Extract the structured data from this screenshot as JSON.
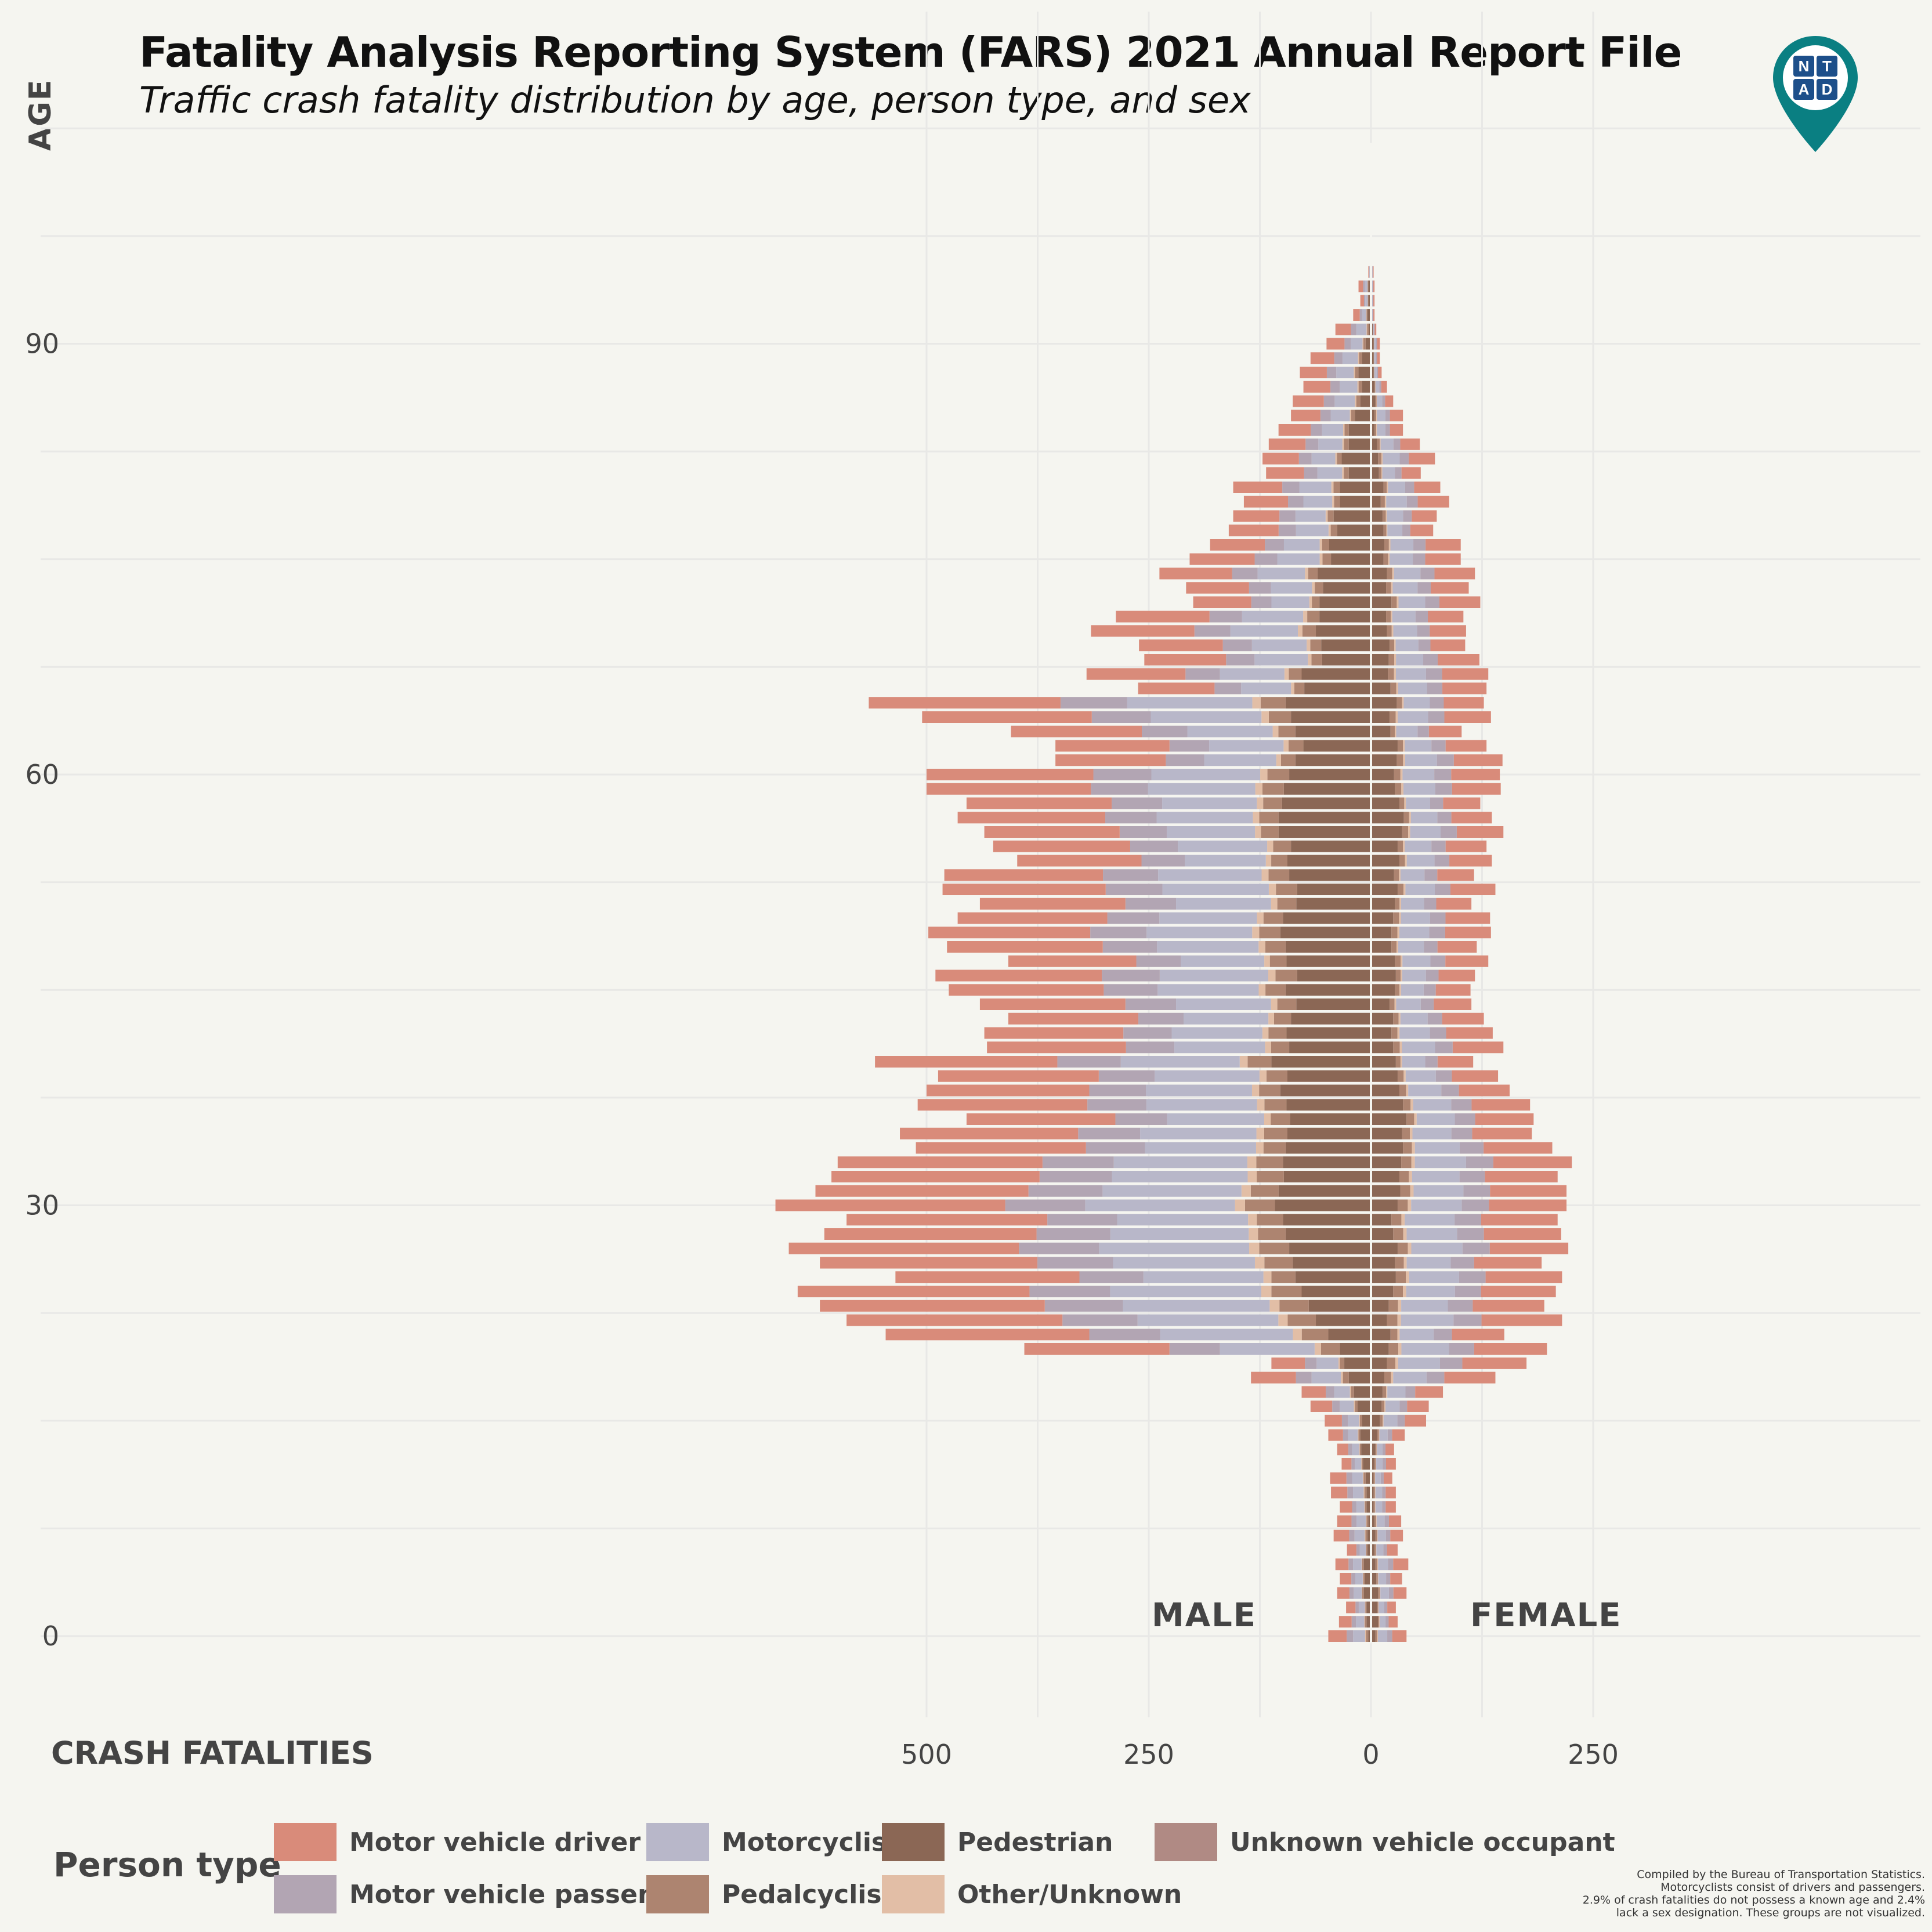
{
  "title": "Fatality Analysis Reporting System (FARS) 2021 Annual Report File",
  "subtitle": "Traffic crash fatality distribution by age, person type, and sex",
  "axis": {
    "y_title": "AGE",
    "x_title": "CRASH FATALITIES",
    "y_ticks": [
      "0",
      "30",
      "60",
      "90"
    ],
    "x_ticks": [
      "500",
      "250",
      "0",
      "250"
    ]
  },
  "sides": {
    "male": "MALE",
    "female": "FEMALE"
  },
  "legend": {
    "title": "Person type",
    "items": [
      {
        "label": "Motor vehicle driver",
        "color": "#d98b7a"
      },
      {
        "label": "Motor vehicle passenger",
        "color": "#b2a5b3"
      },
      {
        "label": "Motorcyclist",
        "color": "#b8b7c9"
      },
      {
        "label": "Pedalcyclist",
        "color": "#ad8470"
      },
      {
        "label": "Pedestrian",
        "color": "#8b6755"
      },
      {
        "label": "Other/Unknown",
        "color": "#e2bea6"
      },
      {
        "label": "Unknown vehicle occupant",
        "color": "#b08a84"
      }
    ]
  },
  "caption": [
    "Compiled by the Bureau of Transportation Statistics.",
    "Motorcyclists consist of drivers and passengers.",
    "2.9% of crash fatalities do not possess a known age and 2.4%",
    "lack a sex designation. These groups are not visualized."
  ],
  "logo": {
    "letters": [
      "N",
      "T",
      "A",
      "D"
    ],
    "color": "#0a7f82"
  },
  "chart_data": {
    "type": "bar",
    "orientation": "horizontal-population-pyramid",
    "xlabel": "CRASH FATALITIES",
    "ylabel": "AGE",
    "xlim_male": [
      0,
      600
    ],
    "xlim_female": [
      0,
      290
    ],
    "ylim": [
      0,
      104
    ],
    "categories": [
      "Motor vehicle driver",
      "Motor vehicle passenger",
      "Motorcyclist",
      "Pedalcyclist",
      "Pedestrian",
      "Other/Unknown",
      "Unknown vehicle occupant"
    ],
    "male_total": [
      48,
      36,
      28,
      38,
      35,
      40,
      27,
      42,
      38,
      35,
      45,
      46,
      33,
      38,
      48,
      52,
      68,
      78,
      135,
      112,
      390,
      546,
      590,
      620,
      645,
      535,
      620,
      655,
      615,
      590,
      670,
      625,
      607,
      600,
      512,
      530,
      455,
      510,
      500,
      487,
      558,
      432,
      435,
      408,
      440,
      475,
      490,
      408,
      477,
      498,
      465,
      440,
      482,
      480,
      398,
      425,
      435,
      465,
      455,
      500,
      500,
      355,
      355,
      405,
      505,
      565,
      262,
      320,
      255,
      261,
      315,
      287,
      200,
      208,
      238,
      204,
      181,
      160,
      155,
      143,
      155,
      118,
      122,
      115,
      104,
      90,
      88,
      76,
      80,
      68,
      50,
      40,
      20,
      12,
      14,
      3,
      0,
      0,
      0,
      0,
      0,
      0,
      0,
      0,
      0
    ],
    "male_pedestrian": [
      3,
      5,
      5,
      8,
      7,
      8,
      4,
      4,
      3,
      5,
      5,
      6,
      9,
      11,
      12,
      10,
      15,
      19,
      25,
      30,
      35,
      48,
      62,
      70,
      78,
      85,
      88,
      92,
      96,
      99,
      108,
      104,
      98,
      99,
      96,
      94,
      91,
      95,
      102,
      94,
      112,
      92,
      95,
      90,
      84,
      96,
      83,
      95,
      96,
      102,
      99,
      84,
      83,
      92,
      94,
      90,
      104,
      104,
      100,
      98,
      92,
      85,
      76,
      85,
      90,
      96,
      75,
      78,
      55,
      56,
      62,
      58,
      58,
      54,
      60,
      45,
      47,
      38,
      42,
      35,
      35,
      25,
      33,
      25,
      25,
      18,
      12,
      10,
      14,
      10,
      6,
      2,
      4,
      3,
      3,
      1,
      1,
      1,
      0,
      0,
      0,
      0,
      0,
      0,
      0
    ],
    "female_total": [
      40,
      30,
      28,
      40,
      35,
      42,
      30,
      36,
      34,
      28,
      28,
      24,
      28,
      26,
      38,
      62,
      65,
      81,
      140,
      175,
      198,
      150,
      215,
      195,
      208,
      215,
      192,
      222,
      214,
      210,
      220,
      220,
      210,
      226,
      204,
      181,
      183,
      179,
      156,
      143,
      115,
      149,
      137,
      127,
      113,
      112,
      117,
      132,
      119,
      135,
      134,
      113,
      140,
      116,
      136,
      130,
      149,
      136,
      123,
      146,
      145,
      148,
      130,
      102,
      135,
      127,
      130,
      132,
      122,
      106,
      107,
      104,
      123,
      110,
      117,
      101,
      101,
      70,
      74,
      88,
      78,
      56,
      72,
      55,
      36,
      36,
      25,
      18,
      12,
      10,
      10,
      6,
      4,
      4,
      4,
      3,
      1,
      1,
      1,
      0,
      0,
      0,
      0,
      0,
      0
    ],
    "female_pedestrian": [
      5,
      8,
      7,
      8,
      6,
      5,
      4,
      5,
      4,
      3,
      3,
      3,
      4,
      5,
      7,
      10,
      12,
      13,
      15,
      18,
      20,
      22,
      18,
      20,
      25,
      28,
      27,
      30,
      25,
      23,
      30,
      33,
      32,
      34,
      36,
      35,
      40,
      36,
      32,
      30,
      28,
      25,
      23,
      25,
      21,
      27,
      28,
      27,
      23,
      23,
      25,
      27,
      30,
      26,
      32,
      30,
      35,
      37,
      32,
      27,
      26,
      29,
      30,
      22,
      21,
      29,
      22,
      19,
      20,
      21,
      18,
      17,
      23,
      17,
      18,
      14,
      15,
      14,
      13,
      11,
      14,
      9,
      8,
      7,
      4,
      4,
      5,
      4,
      3,
      3,
      3,
      2,
      1,
      1,
      1,
      1,
      0,
      0,
      0,
      0,
      0,
      0,
      0,
      0,
      0
    ]
  }
}
